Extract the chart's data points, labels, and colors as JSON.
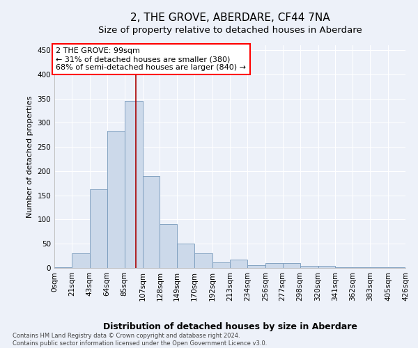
{
  "title": "2, THE GROVE, ABERDARE, CF44 7NA",
  "subtitle": "Size of property relative to detached houses in Aberdare",
  "xlabel": "Distribution of detached houses by size in Aberdare",
  "ylabel": "Number of detached properties",
  "footer_line1": "Contains HM Land Registry data © Crown copyright and database right 2024.",
  "footer_line2": "Contains public sector information licensed under the Open Government Licence v3.0.",
  "annotation_line1": "2 THE GROVE: 99sqm",
  "annotation_line2": "← 31% of detached houses are smaller (380)",
  "annotation_line3": "68% of semi-detached houses are larger (840) →",
  "bar_color": "#ccd9ea",
  "bar_edge_color": "#7799bb",
  "marker_line_color": "#aa0000",
  "marker_value": 99,
  "bin_edges": [
    0,
    21,
    43,
    64,
    85,
    107,
    128,
    149,
    170,
    192,
    213,
    234,
    256,
    277,
    298,
    320,
    341,
    362,
    383,
    405,
    426
  ],
  "bin_labels": [
    "0sqm",
    "21sqm",
    "43sqm",
    "64sqm",
    "85sqm",
    "107sqm",
    "128sqm",
    "149sqm",
    "170sqm",
    "192sqm",
    "213sqm",
    "234sqm",
    "256sqm",
    "277sqm",
    "298sqm",
    "320sqm",
    "341sqm",
    "362sqm",
    "383sqm",
    "405sqm",
    "426sqm"
  ],
  "bar_heights": [
    2,
    30,
    163,
    283,
    345,
    190,
    90,
    50,
    30,
    11,
    17,
    6,
    10,
    10,
    5,
    5,
    2,
    2,
    2,
    1
  ],
  "ylim": [
    0,
    460
  ],
  "yticks": [
    0,
    50,
    100,
    150,
    200,
    250,
    300,
    350,
    400,
    450
  ],
  "background_color": "#edf1f9",
  "grid_color": "#ffffff",
  "title_fontsize": 11,
  "subtitle_fontsize": 9.5,
  "xlabel_fontsize": 9,
  "ylabel_fontsize": 8,
  "tick_fontsize": 7.5,
  "annotation_fontsize": 8,
  "footer_fontsize": 6
}
